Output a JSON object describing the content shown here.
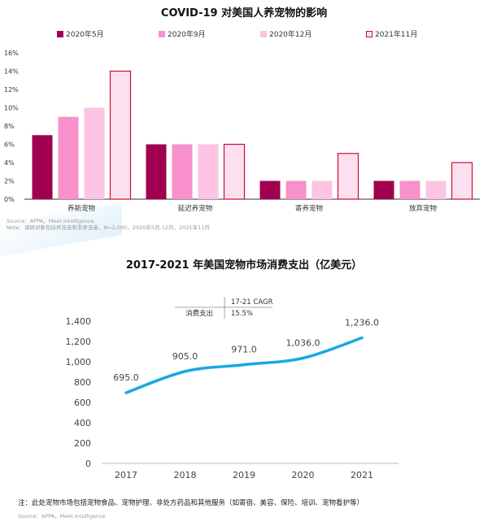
{
  "chart_data": [
    {
      "type": "bar",
      "title": "COVID-19 对美国人养宠物的影响",
      "categories": [
        "养新宠物",
        "延迟养宠物",
        "寄养宠物",
        "放弃宠物"
      ],
      "series": [
        {
          "name": "2020年5月",
          "values": [
            7,
            6,
            2,
            2
          ],
          "color": "#a0004f"
        },
        {
          "name": "2020年9月",
          "values": [
            9,
            6,
            2,
            2
          ],
          "color": "#f790cb"
        },
        {
          "name": "2020年12月",
          "values": [
            10,
            6,
            2,
            2
          ],
          "color": "#fcc4e2"
        },
        {
          "name": "2021年11月",
          "values": [
            14,
            6,
            5,
            4
          ],
          "color": "#fde0ef",
          "stroke": "#c8102e"
        }
      ],
      "yticks": [
        "0%",
        "2%",
        "4%",
        "6%",
        "8%",
        "10%",
        "12%",
        "14%",
        "16%"
      ],
      "ylim": [
        0,
        16
      ],
      "legend_position": "top",
      "source": "Source：APPA，Meet Intelligence",
      "note": "Note：调研对象包括养宠者和非养宠者，N=2,000，2020年5月-12月，2021年11月"
    },
    {
      "type": "line",
      "title": "2017-2021 年美国宠物市场消费支出（亿美元）",
      "x": [
        "2017",
        "2018",
        "2019",
        "2020",
        "2021"
      ],
      "values": [
        695.0,
        905.0,
        971.0,
        1036.0,
        1236.0
      ],
      "labels": [
        "695.0",
        "905.0",
        "971.0",
        "1,036.0",
        "1,236.0"
      ],
      "yticks": [
        "0",
        "200",
        "400",
        "600",
        "800",
        "1,000",
        "1,200",
        "1,400"
      ],
      "ylim": [
        0,
        1400
      ],
      "color": "#17a8e3",
      "cagr_header": "17-21 CAGR",
      "cagr_row_label": "消费支出",
      "cagr_value": "15.5%",
      "note": "注：此处宠物市场包括宠物食品、宠物护理、非处方药品和其他服务（如寄宿、美容、保险、培训、宠物看护等）",
      "source": "Source：APPA，Meet Intelligence"
    }
  ]
}
